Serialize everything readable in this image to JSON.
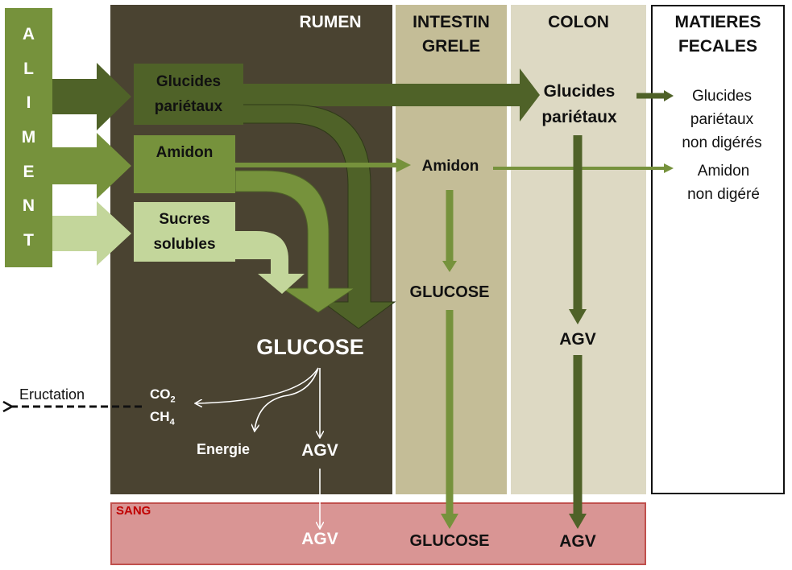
{
  "colors": {
    "rumen": "#4a4331",
    "intestin": "#c4bd97",
    "colon": "#ddd9c3",
    "sang": "#d99594",
    "sang_border": "#c0504d",
    "dark_green": "#4f6228",
    "mid_green": "#76923c",
    "light_green": "#c3d69b"
  },
  "aliment_letters": [
    "A",
    "L",
    "I",
    "M",
    "E",
    "N",
    "T"
  ],
  "sections": {
    "rumen": "RUMEN",
    "intestin": [
      "INTESTIN",
      "GRELE"
    ],
    "colon": "COLON",
    "fecales": [
      "MATIERES",
      "FECALES"
    ],
    "sang": "SANG"
  },
  "rumen": {
    "glucides": [
      "Glucides",
      "pariétaux"
    ],
    "amidon": "Amidon",
    "sucres": [
      "Sucres",
      "solubles"
    ],
    "glucose": "GLUCOSE",
    "co2": "CO",
    "co2_sub": "2",
    "ch4": "CH",
    "ch4_sub": "4",
    "energie": "Energie",
    "agv": "AGV",
    "eructation": "Eructation"
  },
  "intestin": {
    "amidon": "Amidon",
    "glucose": "GLUCOSE"
  },
  "colon": {
    "glucides": [
      "Glucides",
      "pariétaux"
    ],
    "agv": "AGV"
  },
  "fecales": {
    "glucides": [
      "Glucides",
      "pariétaux",
      "non digérés"
    ],
    "amidon": [
      "Amidon",
      "non digéré"
    ]
  },
  "sang": {
    "agv_rumen": "AGV",
    "glucose": "GLUCOSE",
    "agv_colon": "AGV"
  }
}
